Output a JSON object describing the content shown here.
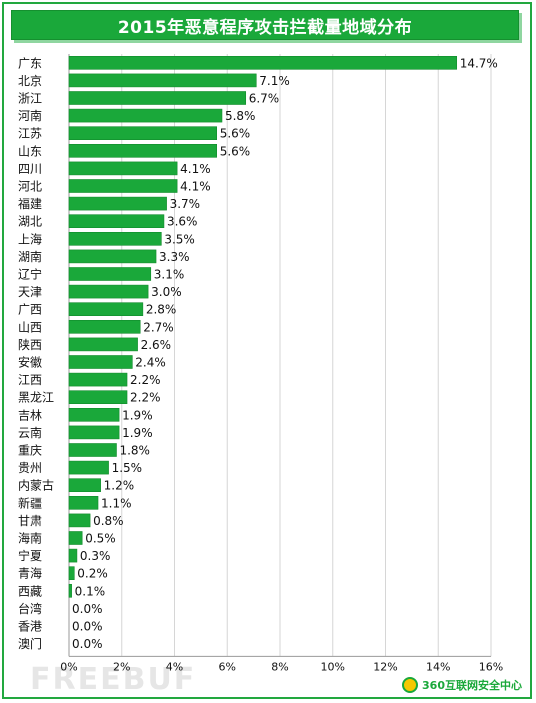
{
  "title": "2015年恶意程序攻击拦截量地域分布",
  "watermark": "FREEBUF",
  "brand": {
    "name": "360互联网安全中心",
    "logo_icon": "360-logo-icon"
  },
  "colors": {
    "bar": "#1aa83a",
    "bar_edge": "#128a2c",
    "title_bg": "#1aa83a",
    "grid": "#d6d6d6"
  },
  "chart_data": {
    "type": "bar",
    "orientation": "horizontal",
    "title": "2015年恶意程序攻击拦截量地域分布",
    "categories": [
      "广东",
      "北京",
      "浙江",
      "河南",
      "江苏",
      "山东",
      "四川",
      "河北",
      "福建",
      "湖北",
      "上海",
      "湖南",
      "辽宁",
      "天津",
      "广西",
      "山西",
      "陕西",
      "安徽",
      "江西",
      "黑龙江",
      "吉林",
      "云南",
      "重庆",
      "贵州",
      "内蒙古",
      "新疆",
      "甘肃",
      "海南",
      "宁夏",
      "青海",
      "西藏",
      "台湾",
      "香港",
      "澳门"
    ],
    "values": [
      14.7,
      7.1,
      6.7,
      5.8,
      5.6,
      5.6,
      4.1,
      4.1,
      3.7,
      3.6,
      3.5,
      3.3,
      3.1,
      3.0,
      2.8,
      2.7,
      2.6,
      2.4,
      2.2,
      2.2,
      1.9,
      1.9,
      1.8,
      1.5,
      1.2,
      1.1,
      0.8,
      0.5,
      0.3,
      0.2,
      0.1,
      0.0,
      0.0,
      0.0
    ],
    "value_labels": [
      "14.7%",
      "7.1%",
      "6.7%",
      "5.8%",
      "5.6%",
      "5.6%",
      "4.1%",
      "4.1%",
      "3.7%",
      "3.6%",
      "3.5%",
      "3.3%",
      "3.1%",
      "3.0%",
      "2.8%",
      "2.7%",
      "2.6%",
      "2.4%",
      "2.2%",
      "2.2%",
      "1.9%",
      "1.9%",
      "1.8%",
      "1.5%",
      "1.2%",
      "1.1%",
      "0.8%",
      "0.5%",
      "0.3%",
      "0.2%",
      "0.1%",
      "0.0%",
      "0.0%",
      "0.0%"
    ],
    "xlim": [
      0,
      16
    ],
    "xticks": [
      0,
      2,
      4,
      6,
      8,
      10,
      12,
      14,
      16
    ],
    "xtick_labels": [
      "0%",
      "2%",
      "4%",
      "6%",
      "8%",
      "10%",
      "12%",
      "14%",
      "16%"
    ],
    "xlabel": "",
    "ylabel": "",
    "grid": true,
    "legend": "none"
  }
}
